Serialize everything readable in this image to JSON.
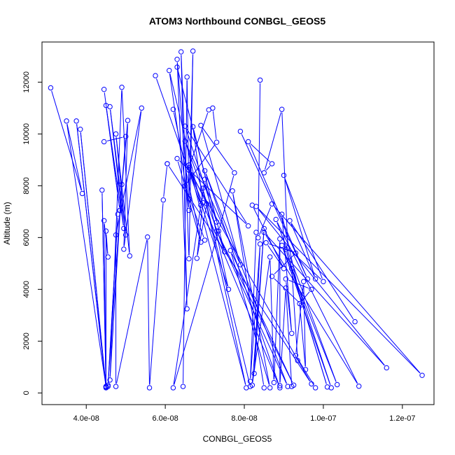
{
  "chart_data": {
    "type": "line",
    "title": "ATOM3 Northbound CONBGL_GEOS5",
    "xlabel": "CONBGL_GEOS5",
    "ylabel": "Altitude (m)",
    "xlim": [
      2.88e-08,
      1.28e-07
    ],
    "ylim": [
      -450,
      13550
    ],
    "x_ticks": [
      4e-08,
      6e-08,
      8e-08,
      1e-07,
      1.2e-07
    ],
    "x_tick_labels": [
      "4.0e-08",
      "6.0e-08",
      "8.0e-08",
      "1.0e-07",
      "1.2e-07"
    ],
    "y_ticks": [
      0,
      2000,
      4000,
      6000,
      8000,
      10000,
      12000
    ],
    "y_tick_labels": [
      "0",
      "2000",
      "4000",
      "6000",
      "8000",
      "10000",
      "12000"
    ],
    "grid": false,
    "marker": "open-circle",
    "series_color": "#0000ff",
    "series": [
      {
        "points": [
          [
            3.1e-08,
            11780
          ],
          [
            3.9e-08,
            7700
          ],
          [
            3.5e-08,
            10500
          ],
          [
            4.5e-08,
            250
          ],
          [
            3.75e-08,
            10500
          ],
          [
            4.5e-08,
            200
          ],
          [
            3.85e-08,
            10180
          ],
          [
            4.5e-08,
            250
          ],
          [
            4.4e-08,
            7830
          ],
          [
            4.5e-08,
            230
          ],
          [
            4.45e-08,
            6650
          ],
          [
            4.55e-08,
            5250
          ],
          [
            4.5e-08,
            6250
          ],
          [
            4.5e-08,
            250
          ]
        ]
      },
      {
        "points": [
          [
            4.45e-08,
            11720
          ],
          [
            4.85e-08,
            7050
          ],
          [
            4.5e-08,
            11100
          ],
          [
            4.95e-08,
            6350
          ],
          [
            4.6e-08,
            11050
          ],
          [
            5e-08,
            6100
          ],
          [
            4.75e-08,
            10000
          ],
          [
            5.1e-08,
            5290
          ],
          [
            4.9e-08,
            11800
          ],
          [
            4.6e-08,
            500
          ],
          [
            4.9e-08,
            8050
          ],
          [
            4.55e-08,
            300
          ],
          [
            4.8e-08,
            6900
          ],
          [
            4.55e-08,
            250
          ]
        ]
      },
      {
        "points": [
          [
            4.45e-08,
            9700
          ],
          [
            5e-08,
            9900
          ],
          [
            4.85e-08,
            7050
          ],
          [
            5.05e-08,
            10520
          ],
          [
            4.95e-08,
            5550
          ],
          [
            5.4e-08,
            11000
          ],
          [
            4.75e-08,
            6100
          ],
          [
            4.75e-08,
            250
          ],
          [
            5.55e-08,
            6020
          ],
          [
            5.6e-08,
            200
          ],
          [
            5.95e-08,
            7450
          ],
          [
            6.05e-08,
            8850
          ]
        ]
      },
      {
        "points": [
          [
            5.75e-08,
            12250
          ],
          [
            6.9e-08,
            7250
          ],
          [
            6.1e-08,
            12450
          ],
          [
            6.6e-08,
            7050
          ],
          [
            6.3e-08,
            12880
          ],
          [
            6.55e-08,
            3250
          ],
          [
            6.4e-08,
            13170
          ],
          [
            6.6e-08,
            5180
          ],
          [
            6.7e-08,
            13200
          ],
          [
            6.6e-08,
            7500
          ],
          [
            6.55e-08,
            12200
          ],
          [
            6.45e-08,
            250
          ]
        ]
      },
      {
        "points": [
          [
            6.2e-08,
            10950
          ],
          [
            6.9e-08,
            5820
          ],
          [
            6.3e-08,
            9050
          ],
          [
            8.1e-08,
            6450
          ],
          [
            6.5e-08,
            10300
          ],
          [
            7.3e-08,
            6600
          ],
          [
            6.7e-08,
            10280
          ],
          [
            6.95e-08,
            7350
          ],
          [
            6.8e-08,
            5200
          ],
          [
            7.05e-08,
            7300
          ],
          [
            6.6e-08,
            8700
          ],
          [
            7.1e-08,
            10930
          ],
          [
            7.2e-08,
            11000
          ],
          [
            7.3e-08,
            9680
          ],
          [
            6.5e-08,
            8000
          ],
          [
            7e-08,
            5900
          ]
        ]
      },
      {
        "points": [
          [
            6.3e-08,
            12580
          ],
          [
            7.5e-08,
            5450
          ],
          [
            6.5e-08,
            9720
          ],
          [
            7.9e-08,
            4950
          ],
          [
            6.9e-08,
            10330
          ],
          [
            7.75e-08,
            8500
          ],
          [
            7.35e-08,
            6250
          ],
          [
            6.2e-08,
            200
          ],
          [
            7e-08,
            8250
          ],
          [
            7.6e-08,
            4000
          ],
          [
            6.6e-08,
            8800
          ],
          [
            8.05e-08,
            200
          ],
          [
            6.95e-08,
            7900
          ],
          [
            8.15e-08,
            250
          ]
        ]
      },
      {
        "points": [
          [
            6.05e-08,
            8850
          ],
          [
            9.7e-08,
            350
          ],
          [
            6.6e-08,
            8600
          ],
          [
            8.9e-08,
            200
          ],
          [
            7e-08,
            8580
          ],
          [
            9.1e-08,
            250
          ],
          [
            7.3e-08,
            6250
          ],
          [
            9.25e-08,
            300
          ],
          [
            7.65e-08,
            5500
          ],
          [
            8.65e-08,
            200
          ],
          [
            7.7e-08,
            7800
          ],
          [
            8.5e-08,
            200
          ]
        ]
      },
      {
        "points": [
          [
            7.9e-08,
            10100
          ],
          [
            9.6e-08,
            4400
          ],
          [
            8.1e-08,
            9700
          ],
          [
            8.7e-08,
            8850
          ],
          [
            8.5e-08,
            8500
          ],
          [
            8.95e-08,
            10950
          ],
          [
            9.1e-08,
            5600
          ],
          [
            1e-07,
            4300
          ],
          [
            9e-08,
            8400
          ],
          [
            9.8e-08,
            4400
          ],
          [
            9.15e-08,
            6650
          ],
          [
            1.08e-07,
            2750
          ]
        ]
      },
      {
        "points": [
          [
            8.4e-08,
            12080
          ],
          [
            8.35e-08,
            5990
          ],
          [
            8.7e-08,
            7300
          ],
          [
            1.25e-07,
            680
          ],
          [
            8.3e-08,
            7200
          ],
          [
            1.16e-07,
            970
          ],
          [
            8.5e-08,
            6200
          ],
          [
            1.09e-07,
            260
          ],
          [
            8.8e-08,
            6700
          ],
          [
            1.035e-07,
            320
          ],
          [
            8.95e-08,
            5700
          ],
          [
            1.02e-07,
            200
          ],
          [
            9.05e-08,
            5550
          ],
          [
            1.01e-07,
            230
          ],
          [
            9.2e-08,
            4800
          ],
          [
            9.35e-08,
            1250
          ]
        ]
      },
      {
        "points": [
          [
            8.2e-08,
            7250
          ],
          [
            9e-08,
            4800
          ],
          [
            8.55e-08,
            5800
          ],
          [
            9.3e-08,
            5400
          ],
          [
            8.7e-08,
            4500
          ],
          [
            9.45e-08,
            3400
          ],
          [
            8.95e-08,
            6900
          ],
          [
            9.2e-08,
            2300
          ],
          [
            9.05e-08,
            4400
          ],
          [
            9.7e-08,
            4000
          ],
          [
            9.4e-08,
            3450
          ],
          [
            9.55e-08,
            900
          ],
          [
            9.5e-08,
            4300
          ],
          [
            9.3e-08,
            1450
          ],
          [
            9.8e-08,
            200
          ]
        ]
      },
      {
        "points": [
          [
            8.3e-08,
            6200
          ],
          [
            8.15e-08,
            450
          ],
          [
            8.4e-08,
            5750
          ],
          [
            8.25e-08,
            750
          ],
          [
            8.5e-08,
            6350
          ],
          [
            8.2e-08,
            300
          ],
          [
            8.65e-08,
            5250
          ],
          [
            8.75e-08,
            400
          ],
          [
            8.9e-08,
            5950
          ],
          [
            8.9e-08,
            280
          ],
          [
            9.05e-08,
            4050
          ],
          [
            9.2e-08,
            250
          ]
        ]
      }
    ]
  }
}
